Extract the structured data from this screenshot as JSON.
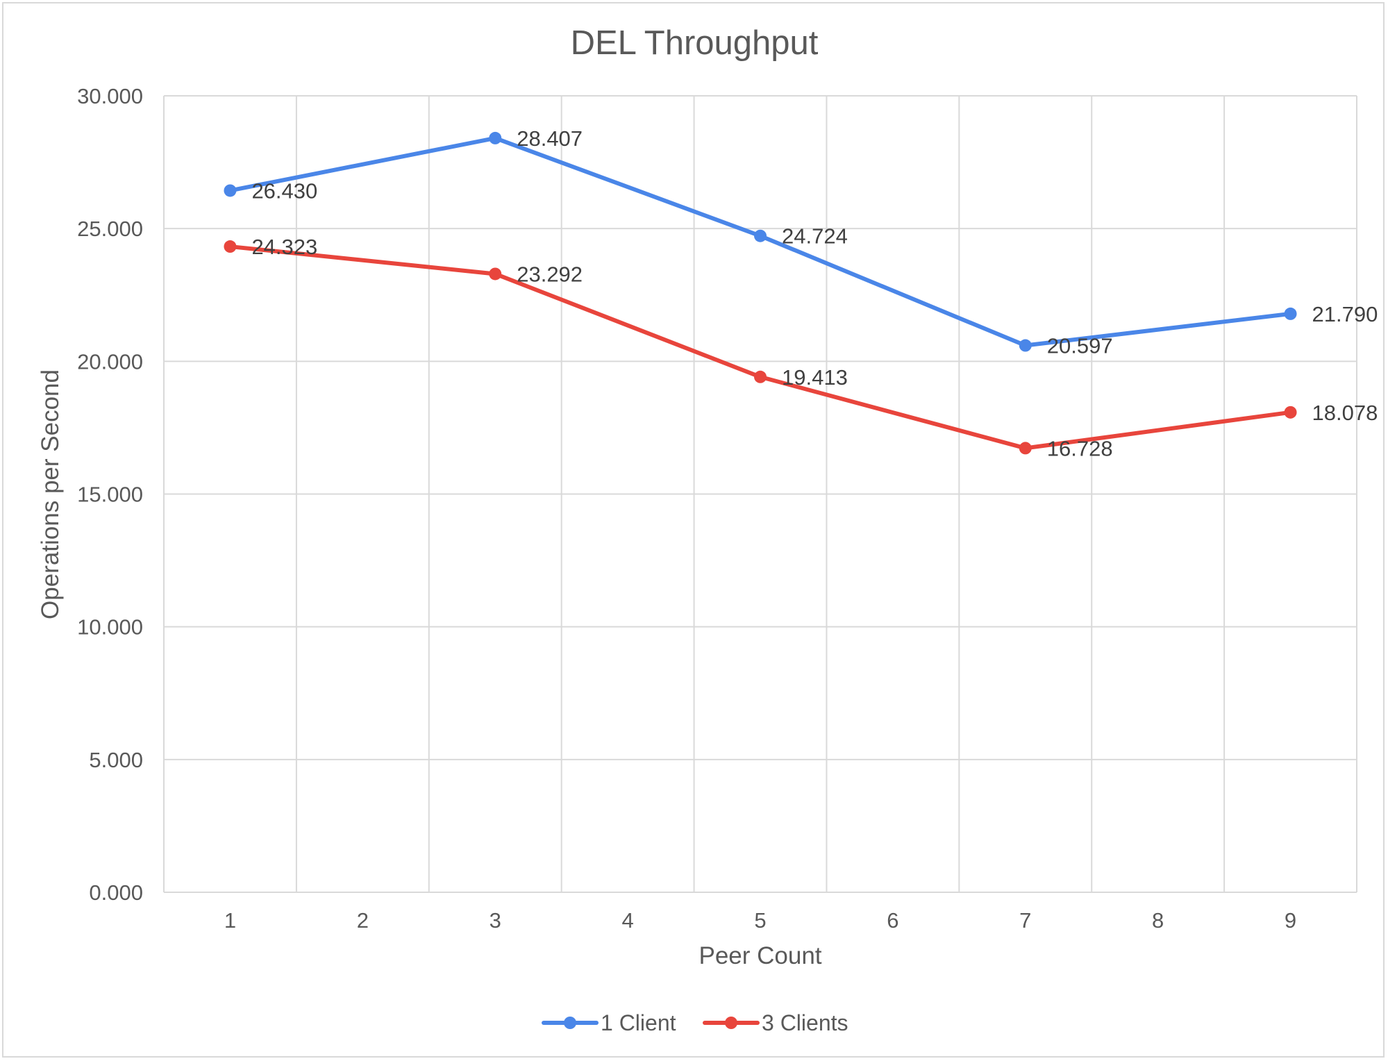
{
  "chart_data": {
    "type": "line",
    "title": "DEL Throughput",
    "xlabel": "Peer Count",
    "ylabel": "Operations per Second",
    "x": [
      1,
      2,
      3,
      4,
      5,
      6,
      7,
      8,
      9
    ],
    "x_tick_labels": [
      "1",
      "2",
      "3",
      "4",
      "5",
      "6",
      "7",
      "8",
      "9"
    ],
    "ylim": [
      0,
      30
    ],
    "y_tick_values": [
      0,
      5,
      10,
      15,
      20,
      25,
      30
    ],
    "y_tick_labels": [
      "0.000",
      "5.000",
      "10.000",
      "15.000",
      "20.000",
      "25.000",
      "30.000"
    ],
    "grid": true,
    "legend_position": "bottom",
    "series": [
      {
        "name": "1 Client",
        "color": "#4a86e8",
        "points": [
          {
            "x": 1,
            "y": 26.43,
            "label": "26.430"
          },
          {
            "x": 3,
            "y": 28.407,
            "label": "28.407"
          },
          {
            "x": 5,
            "y": 24.724,
            "label": "24.724"
          },
          {
            "x": 7,
            "y": 20.597,
            "label": "20.597"
          },
          {
            "x": 9,
            "y": 21.79,
            "label": "21.790"
          }
        ]
      },
      {
        "name": "3 Clients",
        "color": "#e8453c",
        "points": [
          {
            "x": 1,
            "y": 24.323,
            "label": "24.323"
          },
          {
            "x": 3,
            "y": 23.292,
            "label": "23.292"
          },
          {
            "x": 5,
            "y": 19.413,
            "label": "19.413"
          },
          {
            "x": 7,
            "y": 16.728,
            "label": "16.728"
          },
          {
            "x": 9,
            "y": 18.078,
            "label": "18.078"
          }
        ]
      }
    ]
  }
}
